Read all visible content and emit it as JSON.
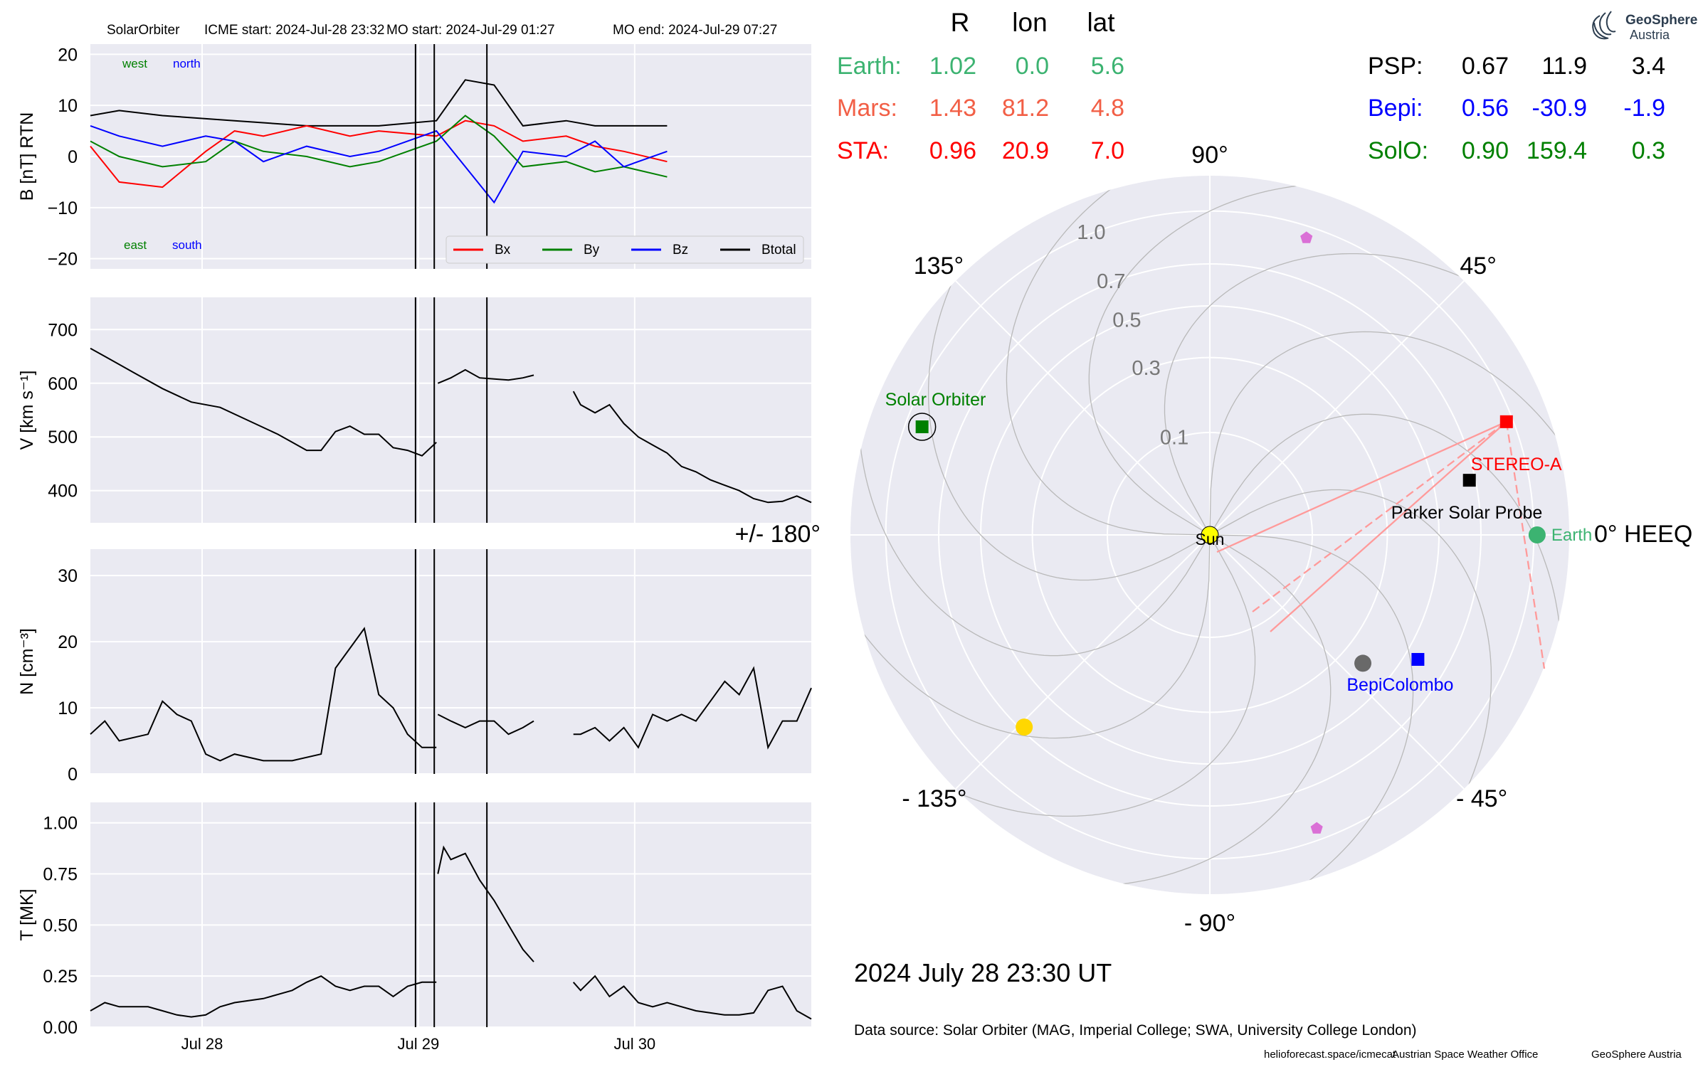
{
  "header": {
    "spacecraft": "SolarOrbiter",
    "icme_start": "ICME start: 2024-Jul-28 23:32",
    "mo_start": "MO start: 2024-Jul-29 01:27",
    "mo_end": "MO end: 2024-Jul-29 07:27"
  },
  "logo": {
    "line1": "GeoSphere",
    "line2": "Austria"
  },
  "colors": {
    "bx": "#ff0000",
    "by": "#008000",
    "bz": "#0000ff",
    "btotal": "#000000",
    "earth": "#3cb371",
    "mars": "#f25f46",
    "sta": "#ff0000",
    "psp": "#000000",
    "bepi": "#0000ff",
    "solo": "#008000",
    "panel_bg": "#eaeaf2",
    "grid": "#ffffff"
  },
  "chart_data": [
    {
      "type": "line",
      "panel": "B",
      "ylabel": "B [nT] RTN",
      "ylim": [
        -22,
        22
      ],
      "yticks": [
        "20",
        "10",
        "0",
        "−10",
        "−20"
      ],
      "ytick_values": [
        20,
        10,
        0,
        -10,
        -20
      ],
      "xlim_days": [
        "2024-07-27 11:00",
        "2024-07-30 20:00"
      ],
      "annotations": {
        "top_left": [
          "west",
          "north"
        ],
        "bottom_left": [
          "east",
          "south"
        ]
      },
      "legend": [
        "Bx",
        "By",
        "Bz",
        "Btotal"
      ],
      "series": [
        {
          "name": "Btotal",
          "key": "btotal",
          "x": [
            0,
            4,
            10,
            20,
            30,
            40,
            48,
            52,
            56,
            60,
            66,
            70,
            74,
            80
          ],
          "y": [
            8,
            9,
            8,
            7,
            6,
            6,
            7,
            15,
            14,
            6,
            7,
            6,
            6,
            6
          ]
        },
        {
          "name": "Bx",
          "key": "bx",
          "x": [
            0,
            4,
            10,
            16,
            20,
            24,
            30,
            36,
            40,
            48,
            52,
            56,
            60,
            66,
            70,
            74,
            80
          ],
          "y": [
            2,
            -5,
            -6,
            1,
            5,
            4,
            6,
            4,
            5,
            4,
            7,
            6,
            3,
            4,
            2,
            1,
            -1
          ]
        },
        {
          "name": "By",
          "key": "by",
          "x": [
            0,
            4,
            10,
            16,
            20,
            24,
            30,
            36,
            40,
            48,
            52,
            56,
            60,
            66,
            70,
            74,
            80
          ],
          "y": [
            3,
            0,
            -2,
            -1,
            3,
            1,
            0,
            -2,
            -1,
            3,
            8,
            4,
            -2,
            -1,
            -3,
            -2,
            -4
          ]
        },
        {
          "name": "Bz",
          "key": "bz",
          "x": [
            0,
            4,
            10,
            16,
            20,
            24,
            30,
            36,
            40,
            48,
            52,
            56,
            60,
            66,
            70,
            74,
            80
          ],
          "y": [
            6,
            4,
            2,
            4,
            3,
            -1,
            2,
            0,
            1,
            5,
            -2,
            -9,
            1,
            0,
            3,
            -2,
            1
          ]
        }
      ]
    },
    {
      "type": "line",
      "panel": "V",
      "ylabel": "V [km s⁻¹]",
      "ylim": [
        340,
        760
      ],
      "yticks": [
        "700",
        "600",
        "500",
        "400"
      ],
      "ytick_values": [
        700,
        600,
        500,
        400
      ],
      "series": [
        {
          "name": "V",
          "key": "btotal",
          "segments": [
            {
              "x": [
                0,
                2,
                6,
                10,
                14,
                18,
                22,
                26,
                28,
                30,
                32,
                34,
                36,
                38,
                40,
                42,
                44,
                46,
                48
              ],
              "y": [
                665,
                650,
                620,
                590,
                565,
                555,
                530,
                505,
                490,
                475,
                475,
                510,
                520,
                505,
                505,
                480,
                475,
                465,
                490
              ]
            },
            {
              "x": [
                48.2,
                50,
                52,
                54,
                56,
                58,
                60,
                61.5
              ],
              "y": [
                600,
                610,
                625,
                610,
                608,
                606,
                610,
                615
              ]
            },
            {
              "x": [
                67,
                68,
                70,
                72,
                74,
                76,
                78,
                80,
                82,
                84,
                86,
                88,
                90,
                92,
                94,
                96,
                98,
                100
              ],
              "y": [
                585,
                560,
                545,
                560,
                525,
                500,
                485,
                470,
                445,
                435,
                420,
                410,
                400,
                385,
                378,
                380,
                390,
                378
              ]
            }
          ]
        }
      ]
    },
    {
      "type": "line",
      "panel": "N",
      "ylabel": "N [cm⁻³]",
      "ylim": [
        0,
        34
      ],
      "yticks": [
        "30",
        "20",
        "10",
        "0"
      ],
      "ytick_values": [
        30,
        20,
        10,
        0
      ],
      "series": [
        {
          "name": "N",
          "key": "btotal",
          "segments": [
            {
              "x": [
                0,
                2,
                4,
                8,
                10,
                12,
                14,
                16,
                18,
                20,
                24,
                28,
                32,
                34,
                36,
                38,
                40,
                42,
                44,
                46,
                48
              ],
              "y": [
                6,
                8,
                5,
                6,
                11,
                9,
                8,
                3,
                2,
                3,
                2,
                2,
                3,
                16,
                19,
                22,
                12,
                10,
                6,
                4,
                4
              ]
            },
            {
              "x": [
                48.2,
                50,
                52,
                54,
                56,
                58,
                60,
                61.5
              ],
              "y": [
                9,
                8,
                7,
                8,
                8,
                6,
                7,
                8
              ]
            },
            {
              "x": [
                67,
                68,
                70,
                72,
                74,
                76,
                78,
                80,
                82,
                84,
                86,
                88,
                90,
                92,
                94,
                96,
                98,
                100
              ],
              "y": [
                6,
                6,
                7,
                5,
                7,
                4,
                9,
                8,
                9,
                8,
                11,
                14,
                12,
                16,
                4,
                8,
                8,
                13
              ]
            }
          ]
        }
      ]
    },
    {
      "type": "line",
      "panel": "T",
      "ylabel": "T [MK]",
      "ylim": [
        0,
        1.1
      ],
      "yticks": [
        "1.00",
        "0.75",
        "0.50",
        "0.25",
        "0.00"
      ],
      "ytick_values": [
        1.0,
        0.75,
        0.5,
        0.25,
        0.0
      ],
      "xticks": [
        "Jul 28",
        "Jul 29",
        "Jul 30"
      ],
      "xtick_values": [
        15.5,
        45.5,
        75.5
      ],
      "series": [
        {
          "name": "T",
          "key": "btotal",
          "segments": [
            {
              "x": [
                0,
                2,
                4,
                8,
                10,
                12,
                14,
                16,
                18,
                20,
                24,
                28,
                30,
                32,
                34,
                36,
                38,
                40,
                42,
                44,
                46,
                48
              ],
              "y": [
                0.08,
                0.12,
                0.1,
                0.1,
                0.08,
                0.06,
                0.05,
                0.06,
                0.1,
                0.12,
                0.14,
                0.18,
                0.22,
                0.25,
                0.2,
                0.18,
                0.2,
                0.2,
                0.15,
                0.2,
                0.22,
                0.22
              ]
            },
            {
              "x": [
                48.2,
                49,
                50,
                52,
                54,
                56,
                58,
                60,
                61.5
              ],
              "y": [
                0.75,
                0.88,
                0.82,
                0.85,
                0.72,
                0.62,
                0.5,
                0.38,
                0.32
              ]
            },
            {
              "x": [
                67,
                68,
                70,
                72,
                74,
                76,
                78,
                80,
                82,
                84,
                86,
                88,
                90,
                92,
                94,
                96,
                98,
                100
              ],
              "y": [
                0.22,
                0.18,
                0.25,
                0.15,
                0.2,
                0.12,
                0.1,
                0.12,
                0.1,
                0.08,
                0.07,
                0.06,
                0.06,
                0.07,
                0.18,
                0.2,
                0.08,
                0.04
              ]
            }
          ]
        }
      ]
    },
    {
      "type": "scatter",
      "panel": "polar",
      "coordinate_system": "HEEQ",
      "date": "2024 July 28  23:30 UT",
      "angle_labels": [
        "90°",
        "45°",
        "0° HEEQ",
        "- 45°",
        "- 90°",
        "- 135°",
        "+/- 180°",
        "135°"
      ],
      "angle_values": [
        90,
        45,
        0,
        -45,
        -90,
        -135,
        180,
        135
      ],
      "radial_labels": [
        "0.1",
        "0.3",
        "0.5",
        "0.7",
        "1.0"
      ],
      "radial_values": [
        0.1,
        0.3,
        0.5,
        0.7,
        1.0
      ],
      "table_header": [
        "R",
        "lon",
        "lat"
      ],
      "bodies": [
        {
          "id": "earth",
          "label": "Earth",
          "table_label": "Earth:",
          "R": "1.02",
          "lon": "0.0",
          "lat": "5.6",
          "r": 1.02,
          "theta": 0.0,
          "marker": "circle",
          "color": "#3cb371"
        },
        {
          "id": "mars",
          "label": "",
          "table_label": "Mars:",
          "R": "1.43",
          "lon": "81.2",
          "lat": "4.8",
          "r": 1.43,
          "theta": 81.2,
          "marker": "none",
          "color": "#f25f46"
        },
        {
          "id": "sta",
          "label": "STEREO-A",
          "table_label": "STA:",
          "R": "0.96",
          "lon": "20.9",
          "lat": "7.0",
          "r": 0.96,
          "theta": 20.9,
          "marker": "square",
          "color": "#ff0000"
        },
        {
          "id": "psp",
          "label": "Parker Solar Probe",
          "table_label": "PSP:",
          "R": "0.67",
          "lon": "11.9",
          "lat": "3.4",
          "r": 0.67,
          "theta": 11.9,
          "marker": "square",
          "color": "#000000"
        },
        {
          "id": "bepi",
          "label": "BepiColombo",
          "table_label": "Bepi:",
          "R": "0.56",
          "lon": "-30.9",
          "lat": "-1.9",
          "r": 0.56,
          "theta": -30.9,
          "marker": "square",
          "color": "#0000ff"
        },
        {
          "id": "solo",
          "label": "Solar Orbiter",
          "table_label": "SolO:",
          "R": "0.90",
          "lon": "159.4",
          "lat": "0.3",
          "r": 0.9,
          "theta": 159.4,
          "marker": "square",
          "color": "#008000"
        }
      ],
      "extra_points": [
        {
          "r": 0.93,
          "theta": 72,
          "marker": "pentagon",
          "color": "#da70d6"
        },
        {
          "r": 0.93,
          "theta": -70,
          "marker": "pentagon",
          "color": "#da70d6"
        },
        {
          "r": 0.38,
          "theta": -40,
          "marker": "circle",
          "color": "#696969"
        },
        {
          "r": 0.68,
          "theta": -134,
          "marker": "circle",
          "color": "#ffd700"
        }
      ],
      "sun_label": "Sun"
    }
  ],
  "footer": {
    "data_source": "Data source: Solar Orbiter (MAG, Imperial College; SWA, University College London)",
    "credits": [
      "helioforecast.space/icmecat",
      "Austrian Space Weather Office",
      "GeoSphere Austria"
    ]
  }
}
